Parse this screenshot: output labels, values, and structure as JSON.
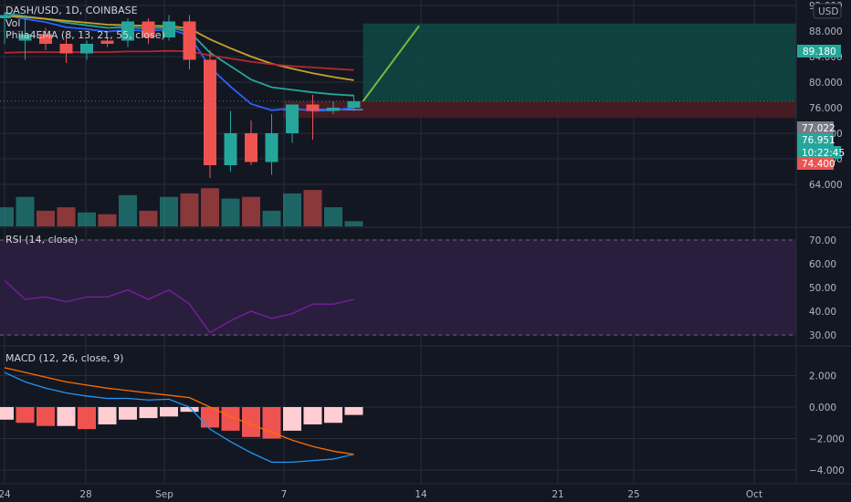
{
  "header": {
    "symbol_line": "DASH/USD, 1D, COINBASE",
    "vol_label": "Vol",
    "ema_label": "Phila4EMA (8, 13, 21, 55, close)",
    "currency_button": "USD"
  },
  "price_tags": {
    "target": "89.180",
    "entry": "77.022",
    "current": "76.951",
    "countdown": "10:22:45",
    "stop": "74.400"
  },
  "rsi_label": "RSI (14, close)",
  "macd_label": "MACD (12, 26, close, 9)",
  "price_axis": {
    "ticks": [
      "92.000",
      "88.000",
      "84.000",
      "80.000",
      "76.000",
      "72.000",
      "68.000",
      "64.000"
    ],
    "values": [
      92,
      88,
      84,
      80,
      76,
      72,
      68,
      64
    ]
  },
  "rsi_axis": {
    "ticks": [
      "70.00",
      "60.00",
      "50.00",
      "40.00",
      "30.00"
    ],
    "values": [
      70,
      60,
      50,
      40,
      30
    ]
  },
  "macd_axis": {
    "ticks": [
      "2.000",
      "0.000",
      "−2.000",
      "−4.000"
    ],
    "values": [
      2,
      0,
      -2,
      -4
    ]
  },
  "date_axis": {
    "labels": [
      "24",
      "28",
      "Sep",
      "7",
      "14",
      "21",
      "25",
      "Oct"
    ]
  },
  "colors": {
    "bg": "#131722",
    "up": "#26a69a",
    "down": "#ef5350",
    "grid": "#2a2e39",
    "ema8": "#2962ff",
    "ema13": "#26a69a",
    "ema21": "#c9a227",
    "ema55": "#b22833",
    "rsi_line": "#7b1fa2",
    "rsi_band": "#2a1e3e",
    "macd_line": "#2196f3",
    "signal_line": "#ff6d00",
    "hist_pos": "#ffcdd2",
    "hist_neg": "#ef5350",
    "target_zone": "#0f4a44",
    "stop_zone": "#4b1d25"
  },
  "chart_data": [
    {
      "type": "candlestick",
      "title": "DASH/USD, 1D, COINBASE",
      "ylim": [
        62,
        93
      ],
      "dates": [
        "Aug 24",
        "Aug 25",
        "Aug 26",
        "Aug 27",
        "Aug 28",
        "Aug 29",
        "Aug 30",
        "Aug 31",
        "Sep 1",
        "Sep 2",
        "Sep 3",
        "Sep 4",
        "Sep 5",
        "Sep 6",
        "Sep 7",
        "Sep 8",
        "Sep 9",
        "Sep 10"
      ],
      "open": [
        90.0,
        86.5,
        87.5,
        86.0,
        84.5,
        86.5,
        86.5,
        89.5,
        87.0,
        89.5,
        83.5,
        67.0,
        72.0,
        67.5,
        72.0,
        76.5,
        75.5,
        76.0
      ],
      "high": [
        91.0,
        90.5,
        88.5,
        87.5,
        86.5,
        87.0,
        90.0,
        90.0,
        90.5,
        90.5,
        85.0,
        75.5,
        74.0,
        75.0,
        76.5,
        78.0,
        77.0,
        78.0
      ],
      "low": [
        86.0,
        83.5,
        85.0,
        83.0,
        83.5,
        85.5,
        85.5,
        86.0,
        86.5,
        82.0,
        65.0,
        66.0,
        67.0,
        65.5,
        70.5,
        71.0,
        75.0,
        75.5
      ],
      "close": [
        90.5,
        87.5,
        86.0,
        84.5,
        86.0,
        86.0,
        89.5,
        87.0,
        89.5,
        83.5,
        67.0,
        72.0,
        67.5,
        72.0,
        76.5,
        75.5,
        76.0,
        77.0
      ],
      "volume": [
        0.55,
        0.85,
        0.45,
        0.55,
        0.4,
        0.35,
        0.9,
        0.45,
        0.85,
        0.95,
        1.1,
        0.8,
        0.85,
        0.45,
        0.95,
        1.05,
        0.55,
        0.15
      ],
      "ema": [
        {
          "name": "8",
          "values": [
            90.5,
            89.9,
            89.4,
            88.6,
            88.3,
            87.9,
            88.2,
            88.0,
            88.3,
            87.3,
            82.3,
            79.3,
            76.6,
            75.6,
            75.9,
            75.5,
            75.6,
            76.0
          ]
        },
        {
          "name": "13",
          "values": [
            90.8,
            90.3,
            89.9,
            89.3,
            88.9,
            88.5,
            88.6,
            88.4,
            88.6,
            87.9,
            84.6,
            82.5,
            80.4,
            79.2,
            78.8,
            78.4,
            78.1,
            77.9
          ]
        },
        {
          "name": "21",
          "values": [
            90.4,
            90.2,
            89.9,
            89.6,
            89.3,
            89.0,
            88.9,
            88.8,
            88.8,
            88.4,
            86.7,
            85.3,
            84.0,
            82.9,
            82.1,
            81.4,
            80.8,
            80.3
          ]
        },
        {
          "name": "55",
          "values": [
            84.6,
            84.7,
            84.7,
            84.7,
            84.7,
            84.7,
            84.8,
            84.8,
            84.9,
            84.8,
            84.2,
            83.7,
            83.2,
            82.8,
            82.5,
            82.3,
            82.1,
            81.9
          ]
        }
      ],
      "position": {
        "entry": 77.022,
        "target": 89.18,
        "stop": 74.4,
        "end_date": "Sep 28"
      },
      "projection": {
        "from": [
          "Sep 10",
          77.0
        ],
        "to": [
          "Sep 13",
          88.8
        ]
      }
    },
    {
      "type": "line",
      "title": "RSI (14, close)",
      "ylim": [
        27,
        73
      ],
      "band": [
        30,
        70
      ],
      "values": [
        53,
        45,
        46,
        44,
        46,
        46,
        49,
        45,
        49,
        43,
        31,
        36,
        40,
        37,
        39,
        43,
        43,
        45
      ]
    },
    {
      "type": "bar",
      "title": "MACD (12, 26, close, 9)",
      "ylim": [
        -4.5,
        3
      ],
      "macd": [
        2.2,
        1.6,
        1.2,
        0.9,
        0.7,
        0.55,
        0.55,
        0.45,
        0.5,
        0.0,
        -1.4,
        -2.2,
        -2.9,
        -3.5,
        -3.5,
        -3.4,
        -3.3,
        -3.0
      ],
      "signal": [
        2.5,
        2.2,
        1.9,
        1.6,
        1.4,
        1.2,
        1.05,
        0.9,
        0.75,
        0.6,
        0.0,
        -0.6,
        -1.1,
        -1.6,
        -2.1,
        -2.5,
        -2.8,
        -3.0
      ],
      "histogram": [
        -0.8,
        -1.0,
        -1.2,
        -1.2,
        -1.4,
        -1.1,
        -0.8,
        -0.7,
        -0.6,
        -0.3,
        -1.3,
        -1.5,
        -1.9,
        -2.0,
        -1.5,
        -1.1,
        -1.0,
        -0.5
      ]
    }
  ]
}
